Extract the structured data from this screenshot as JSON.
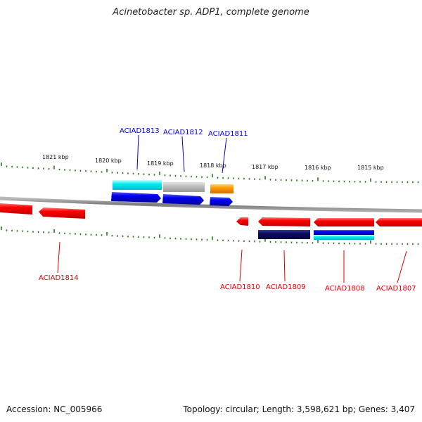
{
  "title": "Acinetobacter sp. ADP1, complete genome",
  "footer": {
    "accession": "Accession: NC_005966",
    "summary": "Topology: circular; Length: 3,598,621 bp; Genes: 3,407"
  },
  "colors": {
    "forward_label": "#0000cc",
    "reverse_label": "#dd0000",
    "ticks": "#2a7a1a",
    "backbone": "#888888"
  },
  "kbp_ticks": [
    "1821 kbp",
    "1820 kbp",
    "1819 kbp",
    "1818 kbp",
    "1817 kbp",
    "1816 kbp",
    "1815 kbp"
  ],
  "genes": {
    "forward": [
      "ACIAD1813",
      "ACIAD1812",
      "ACIAD1811"
    ],
    "reverse": [
      "ACIAD1814",
      "ACIAD1810",
      "ACIAD1809",
      "ACIAD1808",
      "ACIAD1807"
    ]
  }
}
